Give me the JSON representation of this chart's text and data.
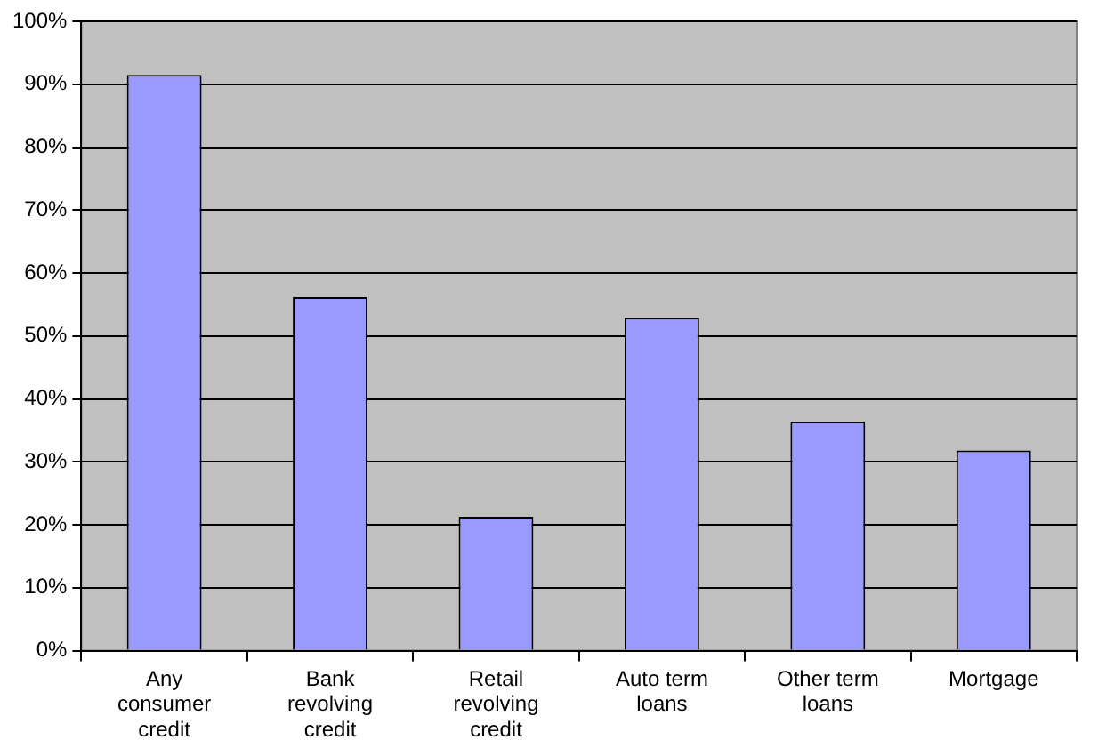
{
  "chart_data": {
    "type": "bar",
    "categories": [
      "Any consumer credit",
      "Bank revolving credit",
      "Retail revolving credit",
      "Auto term loans",
      "Other term loans",
      "Mortgage"
    ],
    "values": [
      91.5,
      56.2,
      21.3,
      52.9,
      36.4,
      31.8
    ],
    "color": "#9999ff",
    "ylim": [
      0,
      100
    ],
    "yticks": [
      {
        "value": 0,
        "label": "0%"
      },
      {
        "value": 10,
        "label": "10%"
      },
      {
        "value": 20,
        "label": "20%"
      },
      {
        "value": 30,
        "label": "30%"
      },
      {
        "value": 40,
        "label": "40%"
      },
      {
        "value": 50,
        "label": "50%"
      },
      {
        "value": 60,
        "label": "60%"
      },
      {
        "value": 70,
        "label": "70%"
      },
      {
        "value": 80,
        "label": "80%"
      },
      {
        "value": 90,
        "label": "90%"
      },
      {
        "value": 100,
        "label": "100%"
      }
    ],
    "grid": "y",
    "legend": false
  }
}
